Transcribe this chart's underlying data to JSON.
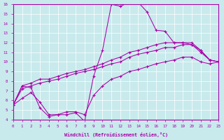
{
  "bg_color": "#c8eaec",
  "line_color": "#aa00aa",
  "xlim": [
    0,
    23
  ],
  "ylim": [
    4,
    16
  ],
  "xticks": [
    0,
    1,
    2,
    3,
    4,
    5,
    6,
    7,
    8,
    9,
    10,
    11,
    12,
    13,
    14,
    15,
    16,
    17,
    18,
    19,
    20,
    21,
    22,
    23
  ],
  "yticks": [
    4,
    5,
    6,
    7,
    8,
    9,
    10,
    11,
    12,
    13,
    14,
    15,
    16
  ],
  "xlabel": "Windchill (Refroidissement éolien,°C)",
  "lines": [
    {
      "x": [
        0,
        1,
        2,
        3,
        4,
        5,
        6,
        7,
        8,
        9,
        10,
        11,
        12,
        13,
        14,
        15,
        16,
        17,
        18,
        19,
        20,
        21,
        22,
        23
      ],
      "y": [
        5.5,
        7.5,
        7.3,
        5.2,
        4.3,
        4.5,
        4.5,
        4.7,
        3.8,
        8.5,
        11.2,
        16.0,
        15.8,
        16.2,
        16.2,
        15.2,
        13.3,
        13.2,
        12.0,
        12.0,
        11.8,
        11.2,
        10.2,
        10.0
      ]
    },
    {
      "x": [
        0,
        1,
        2,
        3,
        4,
        5,
        6,
        7,
        8,
        9,
        10,
        11,
        12,
        13,
        14,
        15,
        16,
        17,
        18,
        19,
        20,
        21,
        22,
        23
      ],
      "y": [
        5.5,
        7.5,
        7.8,
        8.2,
        8.2,
        8.5,
        8.8,
        9.0,
        9.2,
        9.5,
        9.8,
        10.2,
        10.5,
        11.0,
        11.2,
        11.5,
        11.8,
        12.0,
        12.0,
        12.0,
        12.0,
        11.2,
        10.2,
        10.0
      ]
    },
    {
      "x": [
        0,
        1,
        2,
        3,
        4,
        5,
        6,
        7,
        8,
        9,
        10,
        11,
        12,
        13,
        14,
        15,
        16,
        17,
        18,
        19,
        20,
        21,
        22,
        23
      ],
      "y": [
        5.5,
        7.2,
        7.5,
        7.8,
        8.0,
        8.2,
        8.5,
        8.8,
        9.0,
        9.2,
        9.5,
        9.8,
        10.0,
        10.5,
        10.8,
        11.0,
        11.2,
        11.5,
        11.5,
        11.8,
        11.8,
        11.0,
        10.2,
        10.0
      ]
    },
    {
      "x": [
        0,
        1,
        2,
        3,
        4,
        5,
        6,
        7,
        8,
        9,
        10,
        11,
        12,
        13,
        14,
        15,
        16,
        17,
        18,
        19,
        20,
        21,
        22,
        23
      ],
      "y": [
        5.5,
        6.2,
        6.8,
        5.8,
        4.5,
        4.5,
        4.8,
        4.8,
        4.5,
        6.5,
        7.5,
        8.2,
        8.5,
        9.0,
        9.2,
        9.5,
        9.8,
        10.0,
        10.2,
        10.5,
        10.5,
        10.0,
        9.8,
        10.0
      ]
    }
  ]
}
